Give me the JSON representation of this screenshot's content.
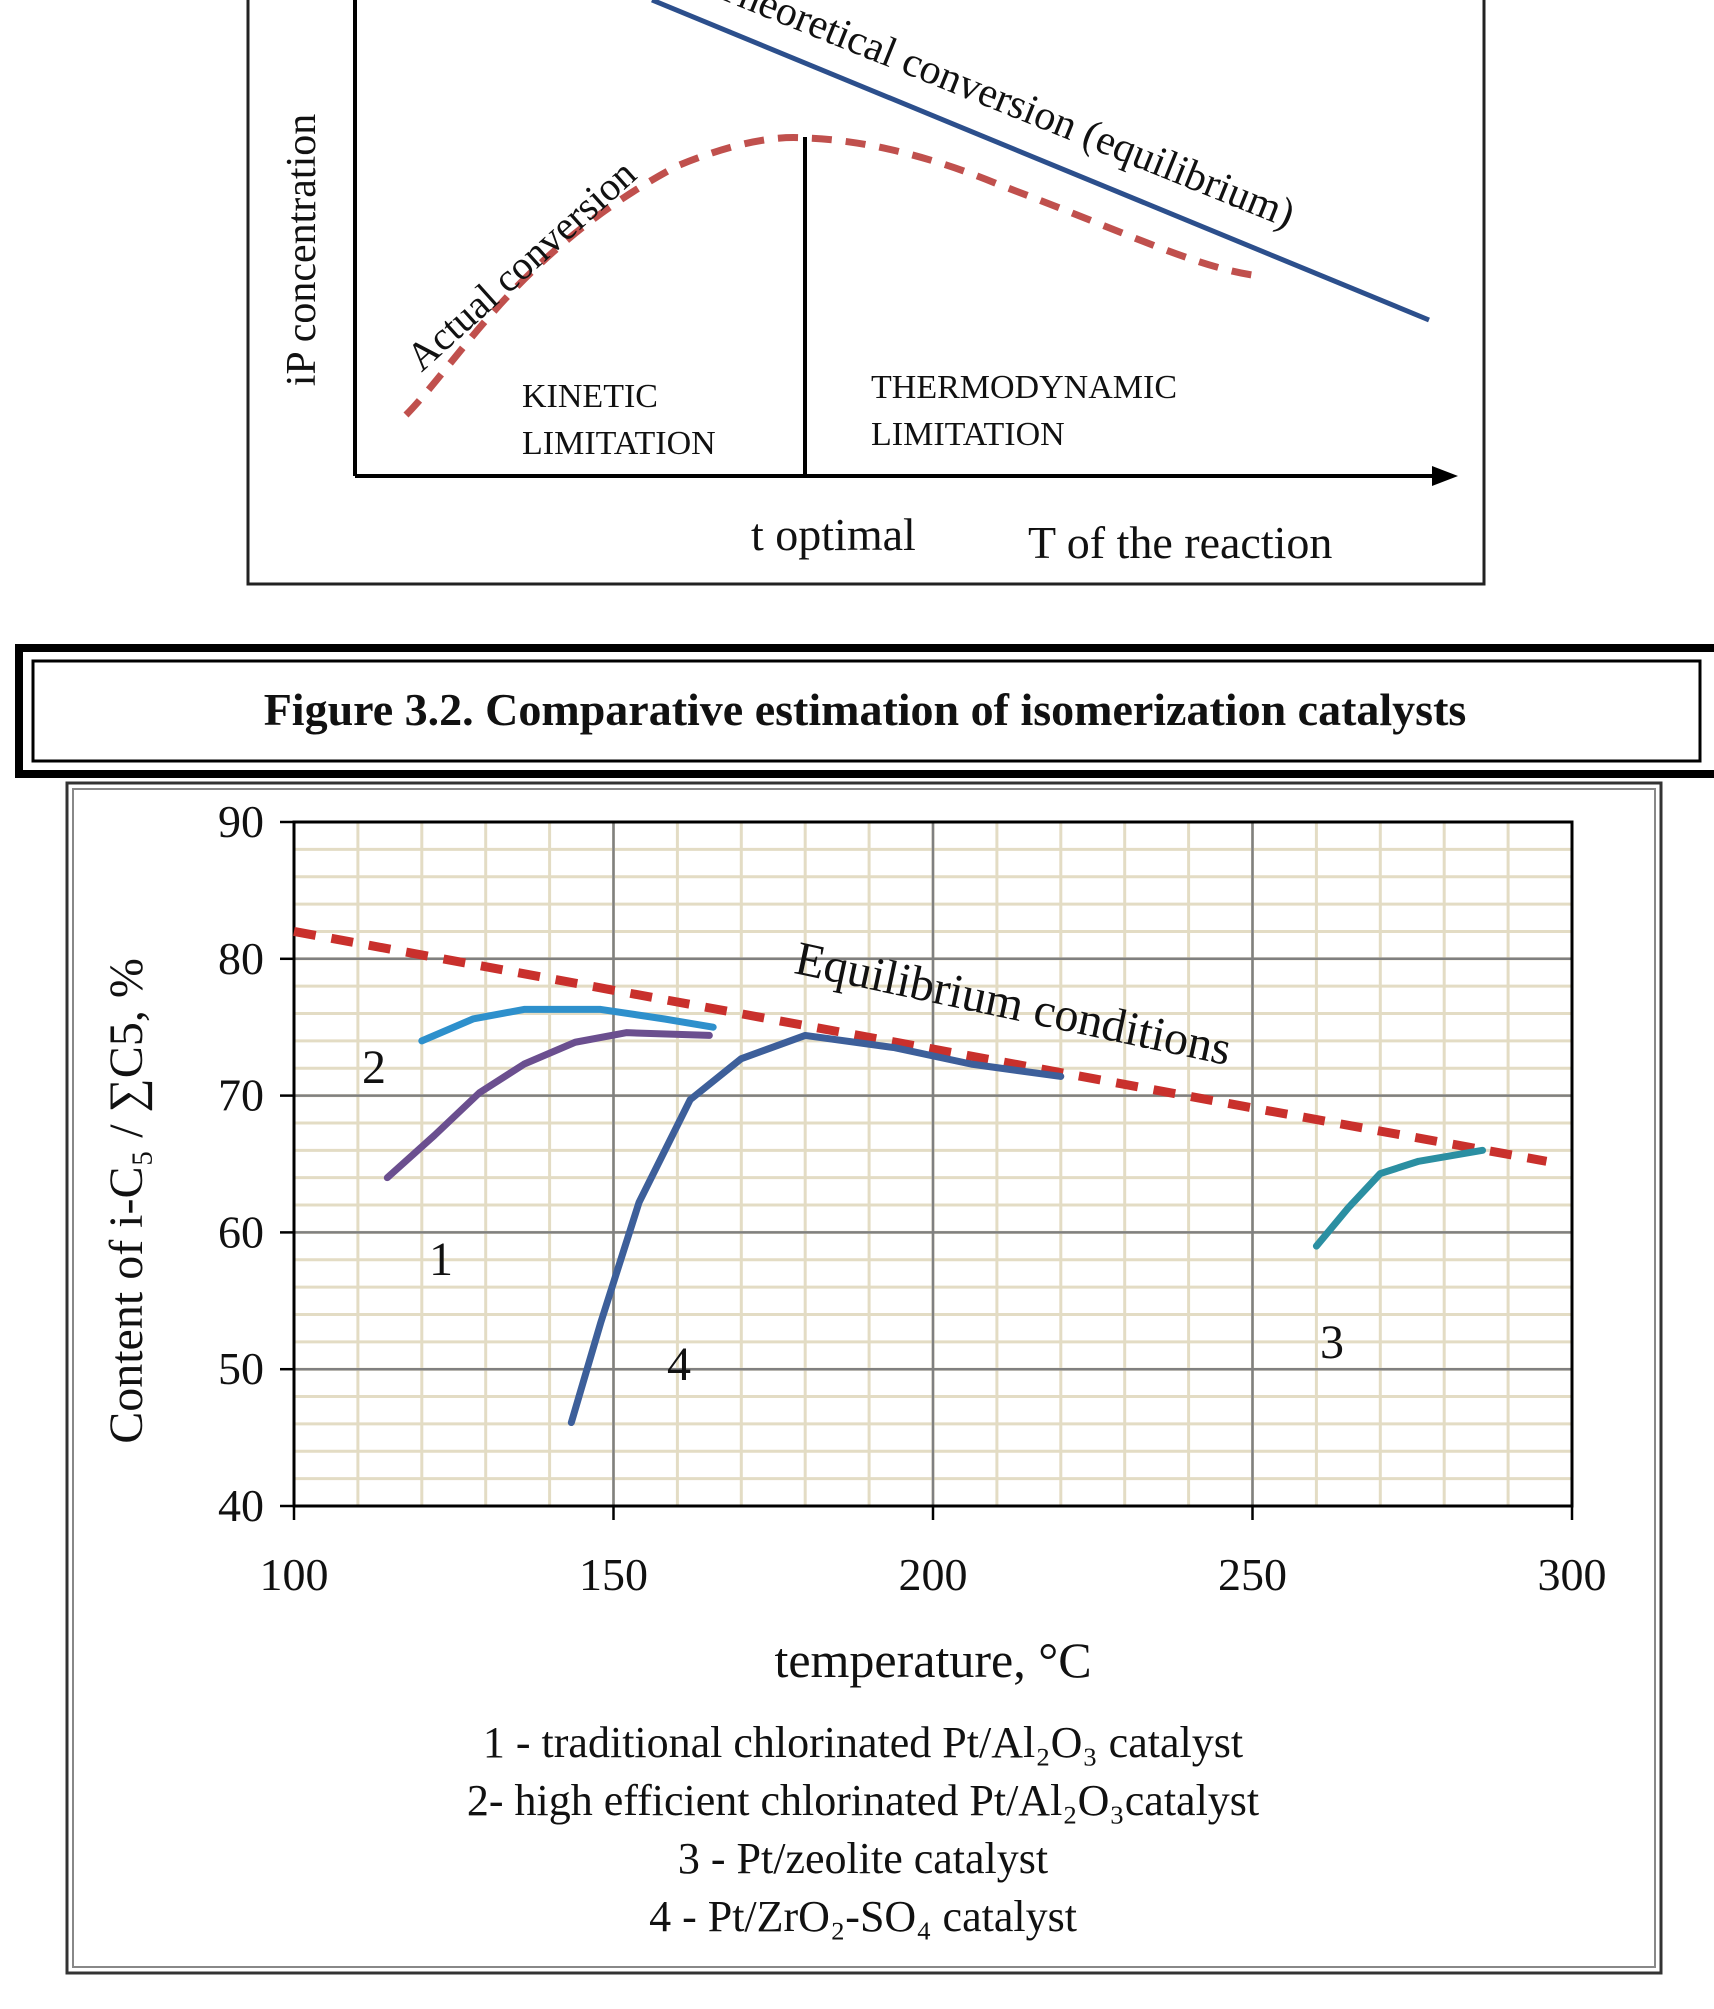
{
  "top_figure": {
    "theoretical": "Theoretical conversion (equilibrium)",
    "actual": "Actual conversion",
    "y_axis": "iP concentration",
    "kinetic": [
      "KINETIC",
      "LIMITATION"
    ],
    "thermodynamic": [
      "THERMODYNAMIC",
      "LIMITATION"
    ],
    "t_optimal": "t optimal",
    "x_axis": "T of the reaction"
  },
  "caption": "Figure 3.2. Comparative estimation of isomerization catalysts",
  "chart_data": {
    "type": "line",
    "x_label": "temperature, °C",
    "y_label": "Content of i-C₅ / ∑C5, %",
    "xlim": [
      100,
      300
    ],
    "xticks": [
      100,
      150,
      200,
      250,
      300
    ],
    "ylim": [
      40,
      90
    ],
    "yticks": [
      40,
      50,
      60,
      70,
      80,
      90
    ],
    "grid": true,
    "minor_grid": {
      "x": 10,
      "y": 2
    },
    "series": [
      {
        "name": "Equilibrium conditions",
        "color": "#c9302c",
        "dash": true,
        "x": [
          100,
          150,
          200,
          250,
          296
        ],
        "values": [
          82,
          77.7,
          73.4,
          69.1,
          65.2
        ]
      },
      {
        "name": "1 - traditional chlorinated Pt/Al₂O₃ catalyst",
        "label": "1",
        "color": "#6b4f8f",
        "x": [
          114.6,
          122,
          129,
          136,
          144,
          152,
          165
        ],
        "values": [
          64.0,
          67.1,
          70.2,
          72.3,
          73.9,
          74.6,
          74.4
        ]
      },
      {
        "name": "2- high efficient chlorinated Pt/Al₂O₃catalyst",
        "label": "2",
        "color": "#2e90cc",
        "x": [
          120,
          128,
          136,
          148,
          158,
          165.6
        ],
        "values": [
          74.0,
          75.6,
          76.3,
          76.3,
          75.6,
          75.0
        ]
      },
      {
        "name": "3 - Pt/zeolite catalyst",
        "label": "3",
        "color": "#2b8fa2",
        "x": [
          260,
          265,
          270,
          276,
          286
        ],
        "values": [
          59.0,
          61.8,
          64.3,
          65.2,
          66.0
        ]
      },
      {
        "name": "4 - Pt/ZrO₂-SO₄ catalyst",
        "label": "4",
        "color": "#3d5f9a",
        "x": [
          143.4,
          148,
          154,
          162,
          170,
          180,
          194,
          206,
          220
        ],
        "values": [
          46.1,
          53.4,
          62.2,
          69.7,
          72.7,
          74.4,
          73.5,
          72.3,
          71.4
        ]
      }
    ]
  }
}
